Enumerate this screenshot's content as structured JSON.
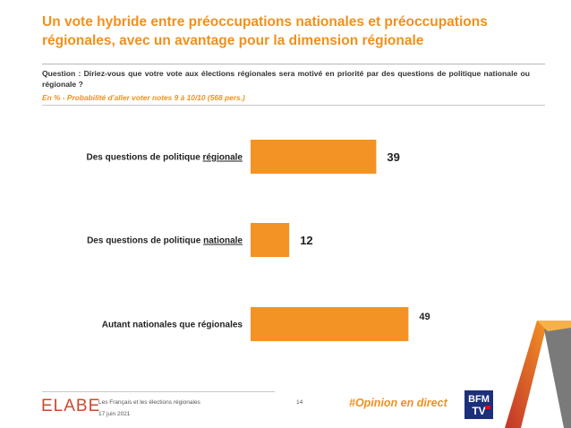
{
  "title": "Un vote hybride entre préoccupations nationales et préoccupations régionales, avec un avantage pour la dimension régionale",
  "question": "Question : Diriez-vous que votre vote aux élections régionales sera motivé en priorité par des questions de politique nationale ou régionale ?",
  "subtitle": "En % - Probabilité d'aller voter notes 9 à 10/10 (568 pers.)",
  "chart_data": {
    "type": "bar",
    "orientation": "horizontal",
    "categories": [
      {
        "prefix": "Des questions de politique ",
        "underlined": "régionale"
      },
      {
        "prefix": "Des questions de politique ",
        "underlined": "nationale"
      },
      {
        "prefix": "Autant nationales que régionales",
        "underlined": ""
      }
    ],
    "values": [
      39,
      12,
      49
    ],
    "value_labels": [
      "39",
      "12",
      "49"
    ],
    "unit": "%",
    "xlim": [
      0,
      50
    ],
    "grid": false,
    "legend": "none",
    "bar_color": "#f39325"
  },
  "footer": {
    "logo": "ELABE",
    "study": "Les Français et les élections régionales",
    "date": "17 juin 2021",
    "page": "14",
    "hashtag": "#Opinion en direct",
    "partner_logo": "BFM TV"
  },
  "colors": {
    "accent": "#f0901e",
    "bar": "#f39325",
    "logo": "#c94a2e",
    "bfm_blue": "#1c2f7a"
  }
}
